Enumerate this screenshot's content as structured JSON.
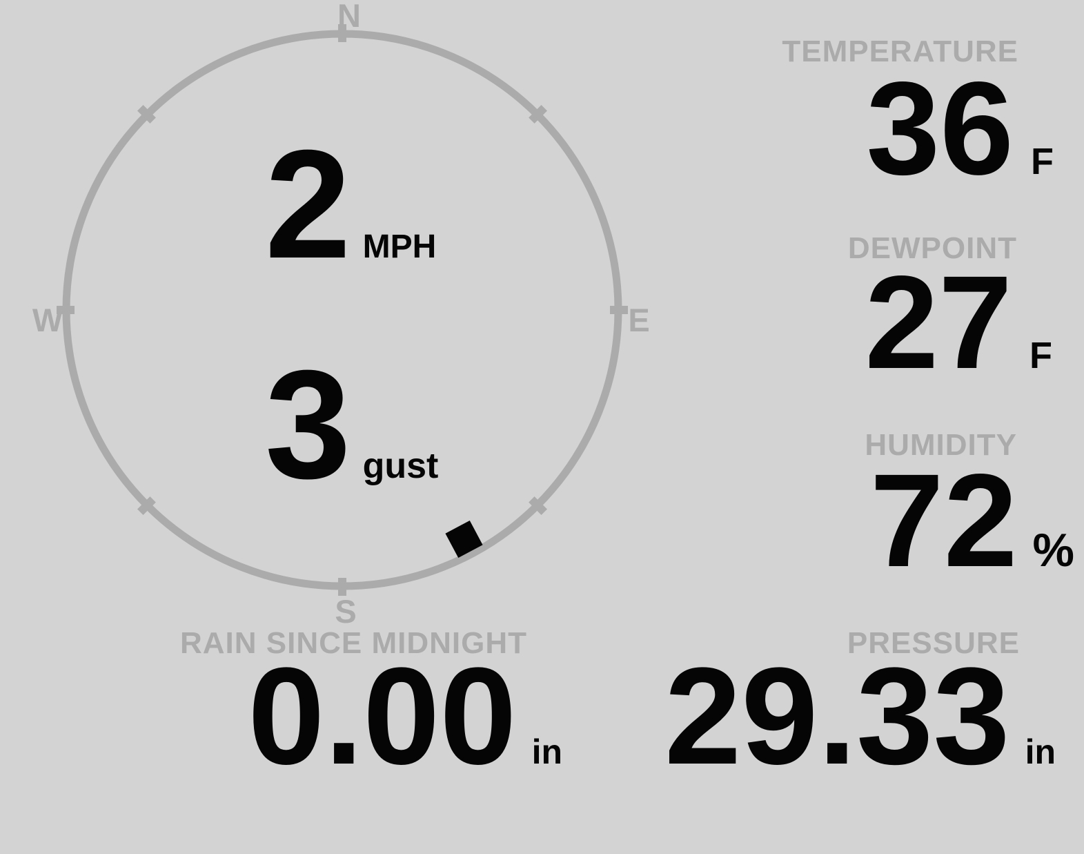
{
  "colors": {
    "background": "#d3d3d3",
    "muted": "#ababab",
    "ink": "#050505"
  },
  "wind": {
    "speed": "2",
    "speed_unit": "MPH",
    "gust": "3",
    "gust_unit": "gust",
    "direction_deg": 152,
    "compass": {
      "north": "N",
      "east": "E",
      "south": "S",
      "west": "W"
    }
  },
  "panels": [
    {
      "label": "TEMPERATURE",
      "value": "36",
      "unit": "F"
    },
    {
      "label": "DEWPOINT",
      "value": "27",
      "unit": "F"
    },
    {
      "label": "HUMIDITY",
      "value": "72",
      "unit": "%"
    }
  ],
  "bottom_panels": [
    {
      "label": "RAIN SINCE MIDNIGHT",
      "value": "0.00",
      "unit": "in"
    },
    {
      "label": "PRESSURE",
      "value": "29.33",
      "unit": "in"
    }
  ]
}
